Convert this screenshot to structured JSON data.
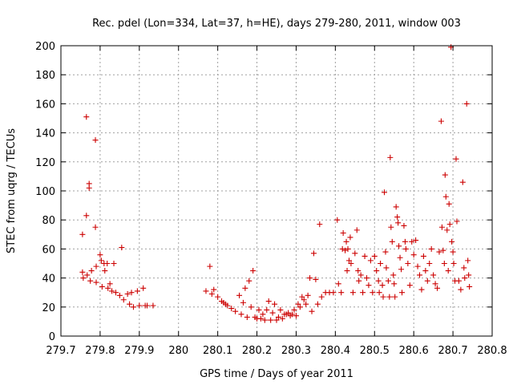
{
  "chart_data": {
    "type": "scatter",
    "title": "Rec. pdel (Lon=334, Lat=37, h=HE), days 279-280, 2011, window 003",
    "xlabel": "GPS time / Days of year 2011",
    "ylabel": "STEC from uqrg / TECUs",
    "xlim": [
      279.7,
      280.8
    ],
    "ylim": [
      0,
      200
    ],
    "x_ticks": [
      "279.7",
      "279.8",
      "279.9",
      "280",
      "280.1",
      "280.2",
      "280.3",
      "280.4",
      "280.5",
      "280.6",
      "280.7",
      "280.8"
    ],
    "y_ticks": [
      "0",
      "20",
      "40",
      "60",
      "80",
      "100",
      "120",
      "140",
      "160",
      "180",
      "200"
    ],
    "grid": true,
    "marker": "+",
    "color": "#cc0000",
    "points": [
      [
        279.755,
        70
      ],
      [
        279.755,
        44
      ],
      [
        279.757,
        40
      ],
      [
        279.765,
        151
      ],
      [
        279.765,
        83
      ],
      [
        279.767,
        42
      ],
      [
        279.772,
        105
      ],
      [
        279.772,
        102
      ],
      [
        279.775,
        38
      ],
      [
        279.778,
        45
      ],
      [
        279.788,
        135
      ],
      [
        279.788,
        75
      ],
      [
        279.79,
        48
      ],
      [
        279.79,
        37
      ],
      [
        279.8,
        56
      ],
      [
        279.803,
        52
      ],
      [
        279.805,
        34
      ],
      [
        279.81,
        50
      ],
      [
        279.812,
        45
      ],
      [
        279.818,
        50
      ],
      [
        279.82,
        33
      ],
      [
        279.825,
        36
      ],
      [
        279.83,
        31
      ],
      [
        279.835,
        50
      ],
      [
        279.84,
        30
      ],
      [
        279.85,
        28
      ],
      [
        279.855,
        61
      ],
      [
        279.86,
        25
      ],
      [
        279.87,
        29
      ],
      [
        279.875,
        22
      ],
      [
        279.88,
        30
      ],
      [
        279.885,
        20
      ],
      [
        279.895,
        31
      ],
      [
        279.9,
        21
      ],
      [
        279.91,
        33
      ],
      [
        279.915,
        21
      ],
      [
        279.92,
        21
      ],
      [
        279.935,
        21
      ],
      [
        280.07,
        31
      ],
      [
        280.08,
        48
      ],
      [
        280.085,
        29
      ],
      [
        280.09,
        32
      ],
      [
        280.1,
        27
      ],
      [
        280.11,
        24
      ],
      [
        280.115,
        23
      ],
      [
        280.12,
        22
      ],
      [
        280.125,
        21
      ],
      [
        280.135,
        19
      ],
      [
        280.145,
        17
      ],
      [
        280.155,
        28
      ],
      [
        280.16,
        15
      ],
      [
        280.165,
        23
      ],
      [
        280.17,
        33
      ],
      [
        280.175,
        13
      ],
      [
        280.18,
        38
      ],
      [
        280.185,
        20
      ],
      [
        280.19,
        45
      ],
      [
        280.195,
        13
      ],
      [
        280.2,
        12
      ],
      [
        280.205,
        18
      ],
      [
        280.21,
        12
      ],
      [
        280.215,
        15
      ],
      [
        280.22,
        11
      ],
      [
        280.225,
        18
      ],
      [
        280.23,
        24
      ],
      [
        280.235,
        11
      ],
      [
        280.24,
        16
      ],
      [
        280.245,
        22
      ],
      [
        280.25,
        11
      ],
      [
        280.255,
        13
      ],
      [
        280.26,
        18
      ],
      [
        280.265,
        12
      ],
      [
        280.27,
        15
      ],
      [
        280.275,
        15
      ],
      [
        280.28,
        16
      ],
      [
        280.285,
        14
      ],
      [
        280.29,
        15
      ],
      [
        280.295,
        18
      ],
      [
        280.3,
        14
      ],
      [
        280.305,
        22
      ],
      [
        280.31,
        20
      ],
      [
        280.315,
        27
      ],
      [
        280.32,
        25
      ],
      [
        280.325,
        22
      ],
      [
        280.33,
        28
      ],
      [
        280.335,
        40
      ],
      [
        280.34,
        17
      ],
      [
        280.345,
        57
      ],
      [
        280.35,
        39
      ],
      [
        280.355,
        22
      ],
      [
        280.36,
        77
      ],
      [
        280.365,
        27
      ],
      [
        280.375,
        30
      ],
      [
        280.385,
        30
      ],
      [
        280.395,
        30
      ],
      [
        280.405,
        80
      ],
      [
        280.408,
        36
      ],
      [
        280.415,
        30
      ],
      [
        280.418,
        60
      ],
      [
        280.42,
        71
      ],
      [
        280.425,
        59
      ],
      [
        280.428,
        65
      ],
      [
        280.43,
        45
      ],
      [
        280.432,
        60
      ],
      [
        280.435,
        52
      ],
      [
        280.438,
        68
      ],
      [
        280.44,
        50
      ],
      [
        280.445,
        30
      ],
      [
        280.45,
        57
      ],
      [
        280.455,
        73
      ],
      [
        280.458,
        45
      ],
      [
        280.46,
        38
      ],
      [
        280.465,
        42
      ],
      [
        280.47,
        30
      ],
      [
        280.475,
        55
      ],
      [
        280.48,
        40
      ],
      [
        280.485,
        35
      ],
      [
        280.49,
        52
      ],
      [
        280.495,
        30
      ],
      [
        280.5,
        55
      ],
      [
        280.505,
        45
      ],
      [
        280.51,
        38
      ],
      [
        280.512,
        30
      ],
      [
        280.515,
        50
      ],
      [
        280.52,
        35
      ],
      [
        280.522,
        27
      ],
      [
        280.525,
        99
      ],
      [
        280.528,
        58
      ],
      [
        280.53,
        47
      ],
      [
        280.535,
        38
      ],
      [
        280.538,
        27
      ],
      [
        280.54,
        123
      ],
      [
        280.542,
        75
      ],
      [
        280.545,
        65
      ],
      [
        280.548,
        42
      ],
      [
        280.55,
        36
      ],
      [
        280.552,
        27
      ],
      [
        280.555,
        89
      ],
      [
        280.558,
        82
      ],
      [
        280.56,
        78
      ],
      [
        280.562,
        62
      ],
      [
        280.565,
        54
      ],
      [
        280.568,
        46
      ],
      [
        280.57,
        30
      ],
      [
        280.575,
        76
      ],
      [
        280.578,
        65
      ],
      [
        280.58,
        60
      ],
      [
        280.585,
        50
      ],
      [
        280.59,
        35
      ],
      [
        280.595,
        65
      ],
      [
        280.6,
        56
      ],
      [
        280.605,
        66
      ],
      [
        280.61,
        48
      ],
      [
        280.615,
        42
      ],
      [
        280.62,
        32
      ],
      [
        280.625,
        55
      ],
      [
        280.63,
        45
      ],
      [
        280.635,
        38
      ],
      [
        280.64,
        50
      ],
      [
        280.645,
        60
      ],
      [
        280.65,
        42
      ],
      [
        280.655,
        36
      ],
      [
        280.66,
        33
      ],
      [
        280.665,
        58
      ],
      [
        280.67,
        148
      ],
      [
        280.672,
        75
      ],
      [
        280.675,
        59
      ],
      [
        280.678,
        50
      ],
      [
        280.68,
        111
      ],
      [
        280.682,
        96
      ],
      [
        280.685,
        73
      ],
      [
        280.688,
        45
      ],
      [
        280.69,
        91
      ],
      [
        280.692,
        77
      ],
      [
        280.695,
        199
      ],
      [
        280.697,
        65
      ],
      [
        280.7,
        58
      ],
      [
        280.702,
        50
      ],
      [
        280.705,
        38
      ],
      [
        280.708,
        122
      ],
      [
        280.71,
        79
      ],
      [
        280.715,
        38
      ],
      [
        280.72,
        32
      ],
      [
        280.725,
        106
      ],
      [
        280.728,
        47
      ],
      [
        280.73,
        40
      ],
      [
        280.735,
        160
      ],
      [
        280.738,
        52
      ],
      [
        280.74,
        42
      ],
      [
        280.742,
        34
      ]
    ]
  }
}
